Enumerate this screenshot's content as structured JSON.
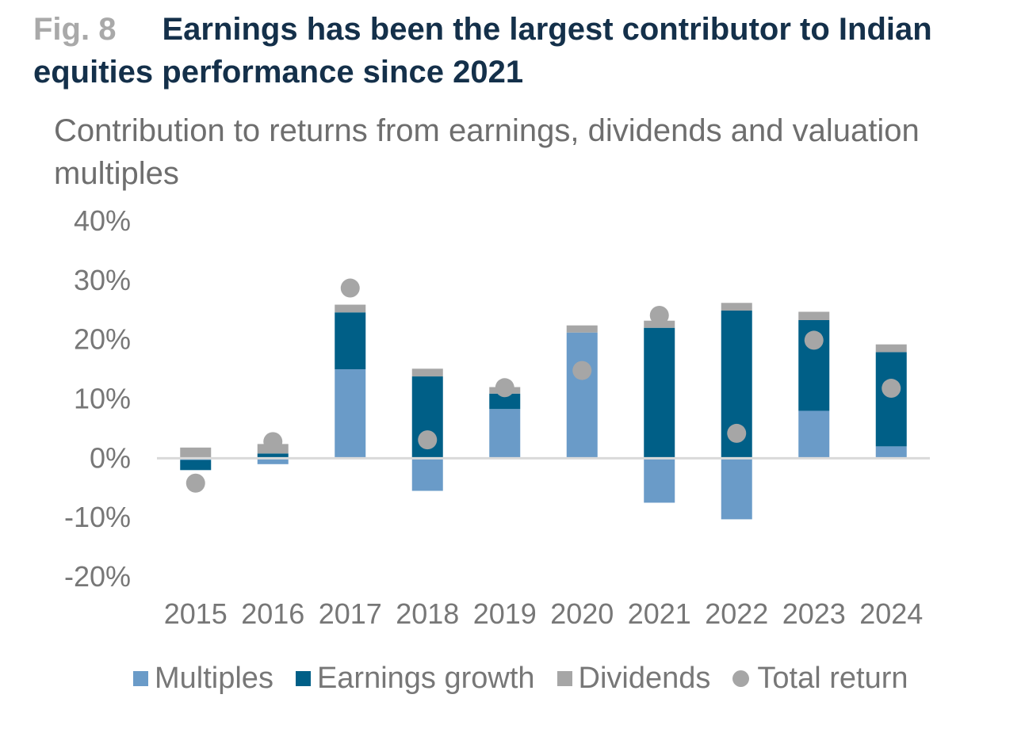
{
  "header": {
    "fig_label": "Fig. 8",
    "title": "Earnings has been the largest contributor to Indian equities performance since 2021"
  },
  "subtitle": "Contribution to returns from earnings, dividends and valuation multiples",
  "colors": {
    "multiples": "#6a9bc8",
    "earnings": "#005f87",
    "dividends": "#a6a6a6",
    "total": "#a6a6a6",
    "zero_line": "#d9d9d9"
  },
  "legend": {
    "multiples": "Multiples",
    "earnings": "Earnings growth",
    "dividends": "Dividends",
    "total": "Total return"
  },
  "chart_data": {
    "type": "bar",
    "stacked": true,
    "categories": [
      "2015",
      "2016",
      "2017",
      "2018",
      "2019",
      "2020",
      "2021",
      "2022",
      "2023",
      "2024"
    ],
    "series": [
      {
        "name": "Multiples",
        "key": "multiples",
        "values": [
          -0.3,
          -1.0,
          15.0,
          -5.5,
          8.3,
          21.2,
          -7.5,
          -10.3,
          8.0,
          2.0
        ]
      },
      {
        "name": "Earnings growth",
        "key": "earnings",
        "values": [
          -1.7,
          0.8,
          9.6,
          13.8,
          2.6,
          0.0,
          22.0,
          24.9,
          15.3,
          15.9
        ]
      },
      {
        "name": "Dividends",
        "key": "dividends",
        "values": [
          1.8,
          1.6,
          1.3,
          1.3,
          1.1,
          1.2,
          1.2,
          1.3,
          1.4,
          1.3
        ]
      },
      {
        "name": "Total return",
        "key": "total",
        "type": "scatter",
        "values": [
          -4.2,
          2.8,
          28.7,
          3.1,
          11.9,
          14.8,
          24.1,
          4.2,
          19.9,
          11.8
        ]
      }
    ],
    "yticks": [
      "40%",
      "30%",
      "20%",
      "10%",
      "0%",
      "-10%",
      "-20%"
    ],
    "ylim": [
      -20,
      40
    ],
    "legend_position": "bottom",
    "grid": false
  }
}
